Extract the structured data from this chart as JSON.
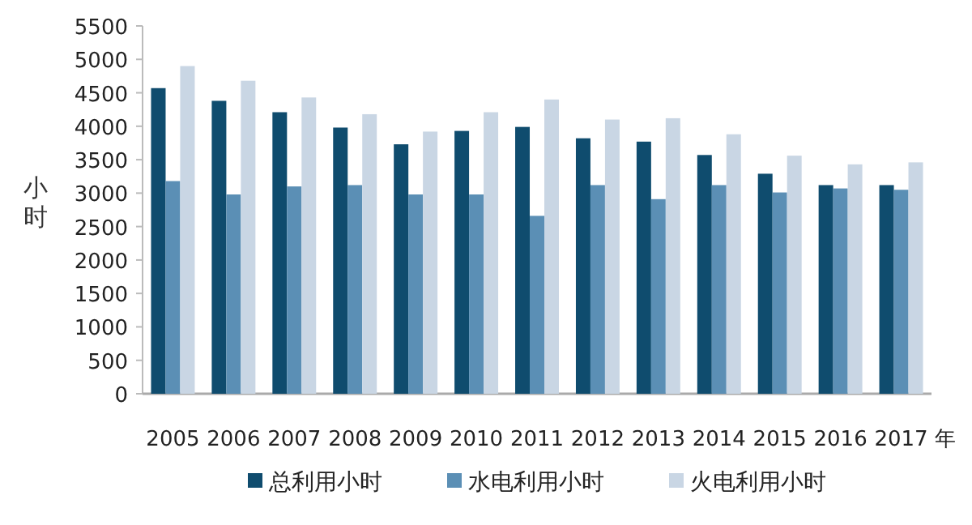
{
  "chart_data": {
    "type": "bar",
    "xlabel": "年",
    "ylabel": "小时",
    "categories": [
      "2005",
      "2006",
      "2007",
      "2008",
      "2009",
      "2010",
      "2011",
      "2012",
      "2013",
      "2014",
      "2015",
      "2016",
      "2017"
    ],
    "series": [
      {
        "name": "总利用小时",
        "color": "#0f4c6e",
        "values": [
          4570,
          4380,
          4210,
          3980,
          3730,
          3930,
          3990,
          3820,
          3770,
          3570,
          3290,
          3120,
          3120
        ]
      },
      {
        "name": "水电利用小时",
        "color": "#5b8fb5",
        "values": [
          3180,
          2980,
          3100,
          3120,
          2980,
          2980,
          2660,
          3120,
          2910,
          3120,
          3010,
          3070,
          3050
        ]
      },
      {
        "name": "火电利用小时",
        "color": "#c9d6e4",
        "values": [
          4900,
          4680,
          4430,
          4180,
          3920,
          4210,
          4400,
          4100,
          4120,
          3880,
          3560,
          3430,
          3460
        ]
      }
    ],
    "ylim": [
      0,
      5500
    ],
    "yticks": [
      0,
      500,
      1000,
      1500,
      2000,
      2500,
      3000,
      3500,
      4000,
      4500,
      5000,
      5500
    ],
    "legend": "bottom",
    "grid": false
  }
}
